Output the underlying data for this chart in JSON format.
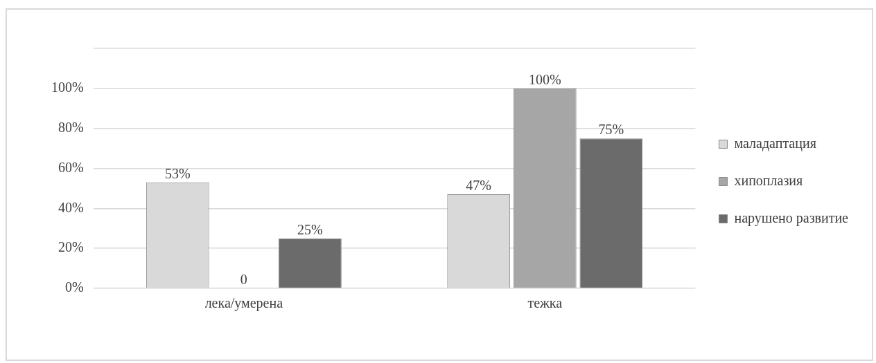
{
  "chart_data": {
    "type": "bar",
    "categories": [
      "лека/умерена",
      "тежка"
    ],
    "series": [
      {
        "name": "маладаптация",
        "color": "#d9d9d9",
        "values": [
          53,
          47
        ],
        "value_labels": [
          "53%",
          "47%"
        ]
      },
      {
        "name": "хипоплазия",
        "color": "#a6a6a6",
        "values": [
          0,
          100
        ],
        "value_labels": [
          "0",
          "100%"
        ]
      },
      {
        "name": "нарушено развитие",
        "color": "#6b6b6b",
        "values": [
          25,
          75
        ],
        "value_labels": [
          "25%",
          "75%"
        ]
      }
    ],
    "ylim": [
      0,
      120
    ],
    "yticks": [
      {
        "value": 0,
        "label": "0%"
      },
      {
        "value": 20,
        "label": "20%"
      },
      {
        "value": 40,
        "label": "40%"
      },
      {
        "value": 60,
        "label": "60%"
      },
      {
        "value": 80,
        "label": "80%"
      },
      {
        "value": 100,
        "label": "100%"
      },
      {
        "value": 120,
        "label": null
      }
    ],
    "grid": "y",
    "legend": "right"
  }
}
